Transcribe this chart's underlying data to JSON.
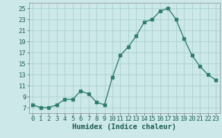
{
  "x": [
    0,
    1,
    2,
    3,
    4,
    5,
    6,
    7,
    8,
    9,
    10,
    11,
    12,
    13,
    14,
    15,
    16,
    17,
    18,
    19,
    20,
    21,
    22,
    23
  ],
  "y": [
    7.5,
    7.0,
    7.0,
    7.5,
    8.5,
    8.5,
    10.0,
    9.5,
    8.0,
    7.5,
    12.5,
    16.5,
    18.0,
    20.0,
    22.5,
    23.0,
    24.5,
    25.0,
    23.0,
    19.5,
    16.5,
    14.5,
    13.0,
    12.0
  ],
  "line_color": "#2e7d6e",
  "marker": "s",
  "marker_size": 2.5,
  "bg_color": "#cce8e8",
  "grid_color": "#aacfcf",
  "xlabel": "Humidex (Indice chaleur)",
  "xlim": [
    -0.5,
    23.5
  ],
  "ylim": [
    6,
    26
  ],
  "yticks": [
    7,
    9,
    11,
    13,
    15,
    17,
    19,
    21,
    23,
    25
  ],
  "xticks": [
    0,
    1,
    2,
    3,
    4,
    5,
    6,
    7,
    8,
    9,
    10,
    11,
    12,
    13,
    14,
    15,
    16,
    17,
    18,
    19,
    20,
    21,
    22,
    23
  ],
  "label_fontsize": 7.5,
  "tick_fontsize": 6.5
}
